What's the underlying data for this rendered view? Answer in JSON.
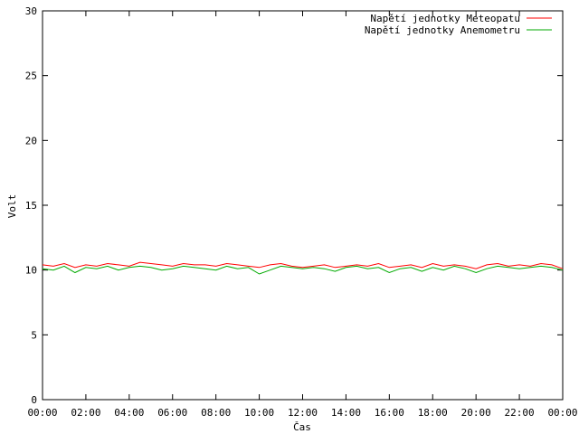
{
  "chart_data": {
    "type": "line",
    "title": "",
    "xlabel": "Čas",
    "ylabel": "Volt",
    "xlim": [
      "00:00",
      "24:00"
    ],
    "ylim": [
      0,
      30
    ],
    "x_ticks": [
      "00:00",
      "02:00",
      "04:00",
      "06:00",
      "08:00",
      "10:00",
      "12:00",
      "14:00",
      "16:00",
      "18:00",
      "20:00",
      "22:00",
      "00:00"
    ],
    "y_ticks": [
      0,
      5,
      10,
      15,
      20,
      25,
      30
    ],
    "grid": false,
    "legend_position": "top-right",
    "x_hours": [
      0,
      0.5,
      1,
      1.5,
      2,
      2.5,
      3,
      3.5,
      4,
      4.5,
      5,
      5.5,
      6,
      6.5,
      7,
      7.5,
      8,
      8.5,
      9,
      9.5,
      10,
      10.5,
      11,
      11.5,
      12,
      12.5,
      13,
      13.5,
      14,
      14.5,
      15,
      15.5,
      16,
      16.5,
      17,
      17.5,
      18,
      18.5,
      19,
      19.5,
      20,
      20.5,
      21,
      21.5,
      22,
      22.5,
      23,
      23.5,
      24
    ],
    "series": [
      {
        "name": "Napětí jednotky Meteopatu",
        "color": "#ff0000",
        "values": [
          10.4,
          10.3,
          10.5,
          10.2,
          10.4,
          10.3,
          10.5,
          10.4,
          10.3,
          10.6,
          10.5,
          10.4,
          10.3,
          10.5,
          10.4,
          10.4,
          10.3,
          10.5,
          10.4,
          10.3,
          10.2,
          10.4,
          10.5,
          10.3,
          10.2,
          10.3,
          10.4,
          10.2,
          10.3,
          10.4,
          10.3,
          10.5,
          10.2,
          10.3,
          10.4,
          10.2,
          10.5,
          10.3,
          10.4,
          10.3,
          10.1,
          10.4,
          10.5,
          10.3,
          10.4,
          10.3,
          10.5,
          10.4,
          10.1
        ]
      },
      {
        "name": "Napětí jednotky Anemometru",
        "color": "#00aa00",
        "values": [
          10.1,
          10.0,
          10.3,
          9.8,
          10.2,
          10.1,
          10.3,
          10.0,
          10.2,
          10.3,
          10.2,
          10.0,
          10.1,
          10.3,
          10.2,
          10.1,
          10.0,
          10.3,
          10.1,
          10.2,
          9.7,
          10.0,
          10.3,
          10.2,
          10.1,
          10.2,
          10.1,
          9.9,
          10.2,
          10.3,
          10.1,
          10.2,
          9.8,
          10.1,
          10.2,
          9.9,
          10.2,
          10.0,
          10.3,
          10.1,
          9.8,
          10.1,
          10.3,
          10.2,
          10.1,
          10.2,
          10.3,
          10.2,
          10.0
        ]
      }
    ]
  }
}
